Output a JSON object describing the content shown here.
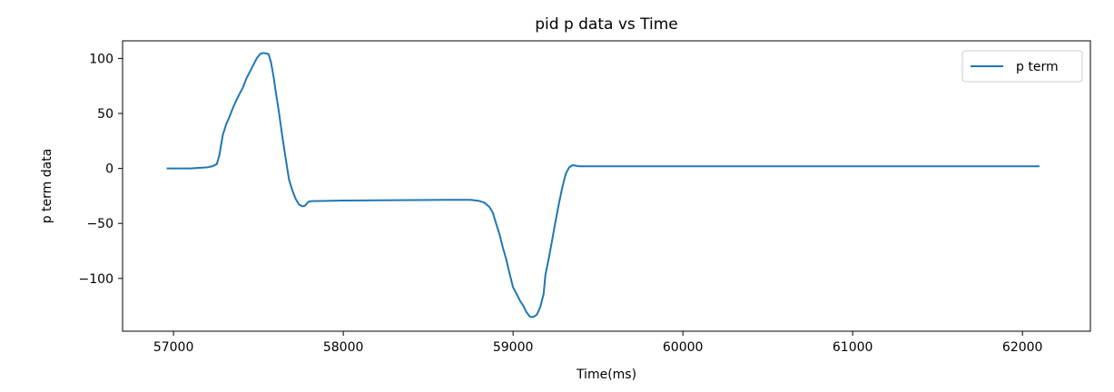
{
  "chart_data": {
    "type": "line",
    "title": "pid p data vs Time",
    "xlabel": "Time(ms)",
    "ylabel": "p term data",
    "xlim": [
      56700,
      62400
    ],
    "ylim": [
      -148,
      116
    ],
    "xticks": [
      57000,
      58000,
      59000,
      60000,
      61000,
      62000
    ],
    "xtick_labels": [
      "57000",
      "58000",
      "59000",
      "60000",
      "61000",
      "62000"
    ],
    "yticks": [
      100,
      50,
      0,
      -50,
      -100
    ],
    "ytick_labels": [
      "100",
      "50",
      "0",
      "−50",
      "−100"
    ],
    "grid": false,
    "legend_position": "top-right",
    "series": [
      {
        "name": "p term",
        "color": "#1f77b4",
        "x": [
          56960,
          57100,
          57200,
          57230,
          57255,
          57270,
          57290,
          57310,
          57330,
          57350,
          57370,
          57390,
          57410,
          57430,
          57450,
          57470,
          57490,
          57510,
          57530,
          57560,
          57575,
          57590,
          57600,
          57620,
          57640,
          57660,
          57680,
          57700,
          57720,
          57740,
          57760,
          57775,
          57790,
          57800,
          57820,
          57900,
          58000,
          58200,
          58400,
          58600,
          58750,
          58800,
          58830,
          58860,
          58880,
          58900,
          58920,
          58940,
          58960,
          58980,
          59000,
          59020,
          59040,
          59060,
          59080,
          59100,
          59120,
          59140,
          59160,
          59180,
          59190,
          59210,
          59230,
          59250,
          59270,
          59290,
          59310,
          59330,
          59350,
          59370,
          59390,
          59410,
          59430,
          59450,
          59470,
          59500,
          60000,
          61000,
          62100
        ],
        "y": [
          0,
          0,
          1,
          2,
          4,
          12,
          30,
          40,
          47,
          55,
          62,
          68,
          74,
          82,
          88,
          94,
          100,
          104,
          105,
          104,
          96,
          83,
          72,
          52,
          30,
          10,
          -10,
          -20,
          -28,
          -33,
          -34.5,
          -34,
          -31,
          -30,
          -29.7,
          -29.5,
          -29.2,
          -29,
          -28.8,
          -28.5,
          -28.5,
          -29.5,
          -31,
          -35,
          -40,
          -50,
          -60,
          -72,
          -83,
          -96,
          -108,
          -114,
          -120,
          -125,
          -131,
          -135,
          -135,
          -133,
          -126,
          -114,
          -97,
          -82,
          -65,
          -48,
          -32,
          -17,
          -5,
          1,
          3,
          2.5,
          2,
          2,
          2,
          2,
          2,
          2,
          2,
          2,
          2
        ]
      }
    ]
  }
}
